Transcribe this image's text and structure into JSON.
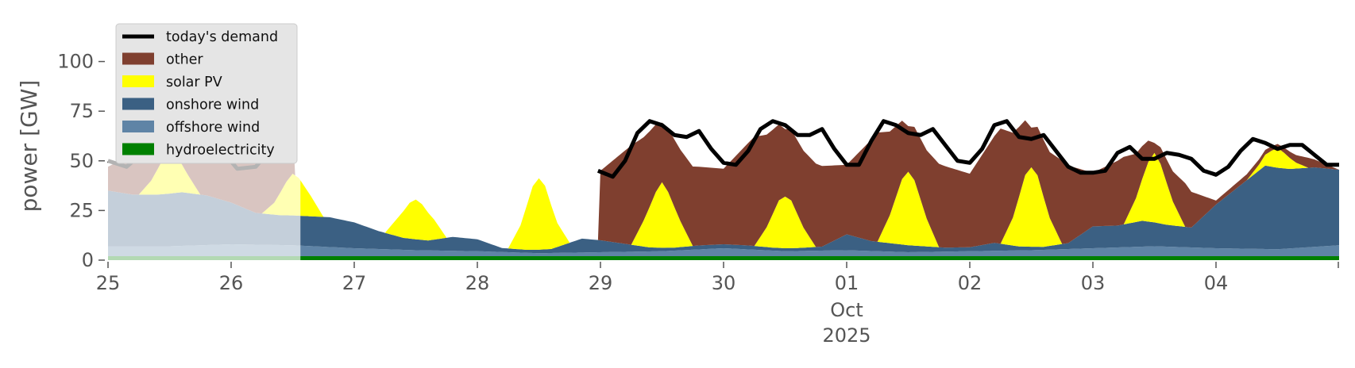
{
  "chart_data": {
    "type": "area",
    "stacked": true,
    "ylabel": "power [GW]",
    "xlabel": "",
    "ylim": [
      0,
      115
    ],
    "yticks": [
      0,
      25,
      50,
      75,
      100
    ],
    "xlim_days": [
      25,
      35
    ],
    "xticks": [
      {
        "day": 25,
        "label": "25"
      },
      {
        "day": 26,
        "label": "26"
      },
      {
        "day": 27,
        "label": "27"
      },
      {
        "day": 28,
        "label": "28"
      },
      {
        "day": 29,
        "label": "29"
      },
      {
        "day": 30,
        "label": "30"
      },
      {
        "day": 31,
        "label": "01",
        "sub": [
          "Oct",
          "2025"
        ]
      },
      {
        "day": 32,
        "label": "02"
      },
      {
        "day": 33,
        "label": "03"
      },
      {
        "day": 34,
        "label": "04"
      }
    ],
    "grid": false,
    "legend_position": "upper-left",
    "history_dimmed_until_day": 26.55,
    "series": [
      {
        "name": "hydroelectricity",
        "color": "#008000",
        "x": [
          25,
          27,
          29,
          31,
          33,
          35
        ],
        "values": [
          2,
          2,
          2,
          2,
          2,
          2
        ]
      },
      {
        "name": "offshore wind",
        "color": "#5f84a6",
        "x": [
          25,
          25.5,
          26,
          26.5,
          27,
          27.5,
          28,
          28.5,
          29,
          29.5,
          30,
          30.5,
          31,
          31.5,
          32,
          32.5,
          33,
          33.5,
          34,
          34.5,
          35
        ],
        "values": [
          5,
          5,
          6,
          5.5,
          4,
          3,
          2.5,
          1.5,
          2,
          2.5,
          4,
          2.5,
          3,
          2,
          2.5,
          3,
          4,
          5,
          4,
          3.5,
          5.5
        ]
      },
      {
        "name": "onshore wind",
        "color": "#3b6083",
        "x": [
          25,
          25.2,
          25.4,
          25.6,
          25.8,
          26,
          26.2,
          26.4,
          26.6,
          26.8,
          27,
          27.2,
          27.4,
          27.6,
          27.8,
          28,
          28.1,
          28.2,
          28.4,
          28.6,
          28.7,
          28.85,
          29,
          29.2,
          29.4,
          29.6,
          29.8,
          30,
          30.2,
          30.4,
          30.6,
          30.8,
          31,
          31.2,
          31.4,
          31.6,
          31.8,
          32,
          32.2,
          32.4,
          32.6,
          32.8,
          33,
          33.2,
          33.4,
          33.6,
          33.8,
          34,
          34.2,
          34.4,
          34.6,
          34.8,
          35
        ],
        "values": [
          28,
          26,
          26,
          27,
          25,
          21,
          16,
          15,
          15,
          15,
          13,
          9,
          6,
          5,
          7,
          6,
          4,
          2,
          1.5,
          2,
          4,
          7,
          6,
          4,
          2,
          1.5,
          2,
          2,
          2,
          1.5,
          1.5,
          2,
          8,
          5,
          4,
          3,
          2,
          2,
          4,
          2,
          1.5,
          3,
          11,
          11,
          13,
          11,
          10,
          22,
          32,
          42,
          40,
          40,
          38
        ]
      },
      {
        "name": "solar PV",
        "color": "#ffff00",
        "x": [
          25,
          25.25,
          25.35,
          25.45,
          25.5,
          25.55,
          25.65,
          25.75,
          26,
          26.25,
          26.35,
          26.45,
          26.5,
          26.55,
          26.65,
          26.75,
          27,
          27.25,
          27.35,
          27.45,
          27.5,
          27.55,
          27.65,
          27.75,
          28,
          28.25,
          28.35,
          28.45,
          28.5,
          28.55,
          28.65,
          28.75,
          29,
          29.25,
          29.35,
          29.45,
          29.5,
          29.55,
          29.65,
          29.75,
          30,
          30.25,
          30.35,
          30.45,
          30.5,
          30.55,
          30.65,
          30.75,
          31,
          31.25,
          31.35,
          31.45,
          31.5,
          31.55,
          31.65,
          31.75,
          32,
          32.25,
          32.35,
          32.45,
          32.5,
          32.55,
          32.65,
          32.75,
          33,
          33.25,
          33.35,
          33.45,
          33.5,
          33.55,
          33.65,
          33.75,
          34,
          34.25,
          34.35,
          34.45,
          34.5,
          34.55,
          34.65,
          34.75,
          35
        ],
        "values": [
          0,
          0,
          7,
          18,
          21,
          19,
          9,
          0,
          0,
          0,
          6,
          17,
          21,
          19,
          10,
          0,
          0,
          0,
          9,
          18,
          20,
          18,
          10,
          0,
          0,
          0,
          12,
          32,
          36,
          32,
          12,
          0,
          0,
          0,
          13,
          28,
          33,
          28,
          13,
          0,
          0,
          0,
          10,
          24,
          26,
          24,
          10,
          0,
          0,
          0,
          14,
          33,
          37,
          33,
          14,
          0,
          0,
          0,
          14,
          36,
          40,
          36,
          14,
          0,
          0,
          0,
          12,
          30,
          35,
          30,
          12,
          0,
          0,
          0,
          3,
          8,
          10,
          8,
          3,
          0,
          0
        ]
      },
      {
        "name": "other",
        "color": "#7f3f2f",
        "x": [
          25,
          25.3,
          25.5,
          25.7,
          26,
          26.3,
          26.5,
          26.52,
          28.98,
          29,
          29.25,
          29.5,
          29.75,
          30,
          30.25,
          30.5,
          30.75,
          31,
          31.25,
          31.5,
          31.75,
          32,
          32.25,
          32.5,
          32.75,
          33,
          33.25,
          33.5,
          33.75,
          34,
          34.25,
          34.5,
          34.75,
          35
        ],
        "values": [
          12,
          25,
          20,
          24,
          22,
          30,
          25,
          0,
          0,
          35,
          50,
          30,
          40,
          38,
          55,
          34,
          42,
          35,
          55,
          23,
          42,
          37,
          58,
          20,
          42,
          27,
          34,
          5,
          22,
          2,
          3,
          2,
          5,
          0
        ]
      }
    ],
    "demand": {
      "name": "today's demand",
      "color": "#000000",
      "segments": [
        {
          "dimmed": true,
          "x": [
            25.0,
            25.15,
            25.3,
            25.45,
            25.6,
            25.75,
            25.9,
            26.05,
            26.2,
            26.35,
            26.45,
            26.52
          ],
          "values": [
            50,
            47,
            55,
            68,
            71,
            66,
            57,
            46,
            47,
            58,
            70,
            68
          ]
        },
        {
          "dimmed": false,
          "x": [
            28.98,
            29.1,
            29.2,
            29.3,
            29.4,
            29.5,
            29.6,
            29.7,
            29.8,
            29.9,
            30.0,
            30.1,
            30.2,
            30.3,
            30.4,
            30.5,
            30.6,
            30.7,
            30.8,
            30.9,
            31.0,
            31.1,
            31.2,
            31.3,
            31.4,
            31.5,
            31.6,
            31.7,
            31.8,
            31.9,
            32.0,
            32.1,
            32.2,
            32.3,
            32.4,
            32.5,
            32.6,
            32.7,
            32.8,
            32.9,
            33.0,
            33.1,
            33.2,
            33.3,
            33.4,
            33.5,
            33.6,
            33.7,
            33.8,
            33.9,
            34.0,
            34.1,
            34.2,
            34.3,
            34.4,
            34.5,
            34.6,
            34.7,
            34.8,
            34.9,
            35.0
          ],
          "values": [
            45,
            42,
            50,
            64,
            70,
            68,
            63,
            62,
            65,
            56,
            49,
            48,
            55,
            66,
            70,
            68,
            63,
            63,
            66,
            56,
            48,
            48,
            60,
            70,
            68,
            64,
            63,
            66,
            58,
            50,
            49,
            56,
            68,
            70,
            62,
            61,
            63,
            55,
            47,
            44,
            44,
            45,
            54,
            57,
            51,
            51,
            54,
            53,
            51,
            45,
            43,
            47,
            55,
            61,
            59,
            56,
            58,
            58,
            53,
            48,
            48
          ]
        }
      ]
    },
    "legend": [
      "today's demand",
      "other",
      "solar PV",
      "onshore wind",
      "offshore wind",
      "hydroelectricity"
    ]
  }
}
